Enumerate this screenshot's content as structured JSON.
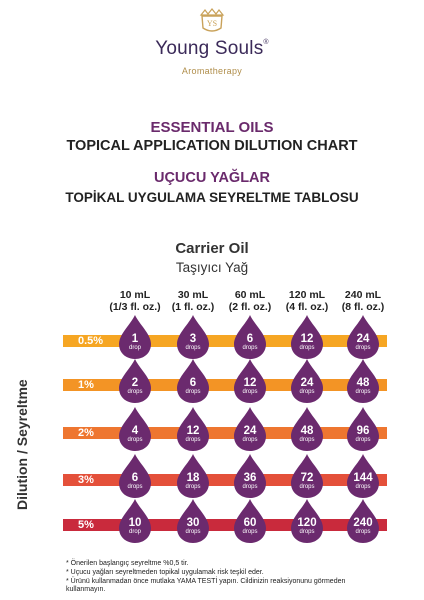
{
  "brand": {
    "name": "Young Souls",
    "registered": "®",
    "subtitle": "Aromatherapy",
    "crest": "YS"
  },
  "titles": {
    "en_line1": "ESSENTIAL OILS",
    "en_line2": "TOPICAL APPLICATION DILUTION CHART",
    "tr_line1": "UÇUCU YAĞLAR",
    "tr_line2": "TOPİKAL UYGULAMA SEYRELTME TABLOSU"
  },
  "carrier": {
    "en": "Carrier Oil",
    "tr": "Taşıyıcı Yağ"
  },
  "axis_label": "Dilution  / Seyreltme",
  "columns": [
    {
      "ml": "10 mL",
      "oz": "(1/3 fl. oz.)"
    },
    {
      "ml": "30 mL",
      "oz": "(1 fl. oz.)"
    },
    {
      "ml": "60 mL",
      "oz": "(2 fl. oz.)"
    },
    {
      "ml": "120 mL",
      "oz": "(4 fl. oz.)"
    },
    {
      "ml": "240 mL",
      "oz": "(8 fl. oz.)"
    }
  ],
  "rows": [
    {
      "pct": "0.5%",
      "color": "#f6a623",
      "drops": [
        {
          "n": "1",
          "u": "drop"
        },
        {
          "n": "3",
          "u": "drops"
        },
        {
          "n": "6",
          "u": "drops"
        },
        {
          "n": "12",
          "u": "drops"
        },
        {
          "n": "24",
          "u": "drops"
        }
      ]
    },
    {
      "pct": "1%",
      "color": "#f39425",
      "drops": [
        {
          "n": "2",
          "u": "drops"
        },
        {
          "n": "6",
          "u": "drops"
        },
        {
          "n": "12",
          "u": "drops"
        },
        {
          "n": "24",
          "u": "drops"
        },
        {
          "n": "48",
          "u": "drops"
        }
      ]
    },
    {
      "pct": "2%",
      "color": "#ee7630",
      "drops": [
        {
          "n": "4",
          "u": "drops"
        },
        {
          "n": "12",
          "u": "drops"
        },
        {
          "n": "24",
          "u": "drops"
        },
        {
          "n": "48",
          "u": "drops"
        },
        {
          "n": "96",
          "u": "drops"
        }
      ]
    },
    {
      "pct": "3%",
      "color": "#e4503a",
      "drops": [
        {
          "n": "6",
          "u": "drops"
        },
        {
          "n": "18",
          "u": "drops"
        },
        {
          "n": "36",
          "u": "drops"
        },
        {
          "n": "72",
          "u": "drops"
        },
        {
          "n": "144",
          "u": "drops"
        }
      ]
    },
    {
      "pct": "5%",
      "color": "#c92a3c",
      "drops": [
        {
          "n": "10",
          "u": "drop"
        },
        {
          "n": "30",
          "u": "drops"
        },
        {
          "n": "60",
          "u": "drops"
        },
        {
          "n": "120",
          "u": "drops"
        },
        {
          "n": "240",
          "u": "drops"
        }
      ]
    }
  ],
  "drop_color": "#6b2a6e",
  "notes": [
    "* Önerilen başlangıç seyreltme %0,5 tir.",
    "* Uçucu yağları seyreltmeden topikal uygulamak risk teşkil eder.",
    "* Ürünü kullanmadan önce mutlaka YAMA TESTİ yapın. Cildinizin reaksiyonunu görmeden",
    "  kullanmayın."
  ]
}
